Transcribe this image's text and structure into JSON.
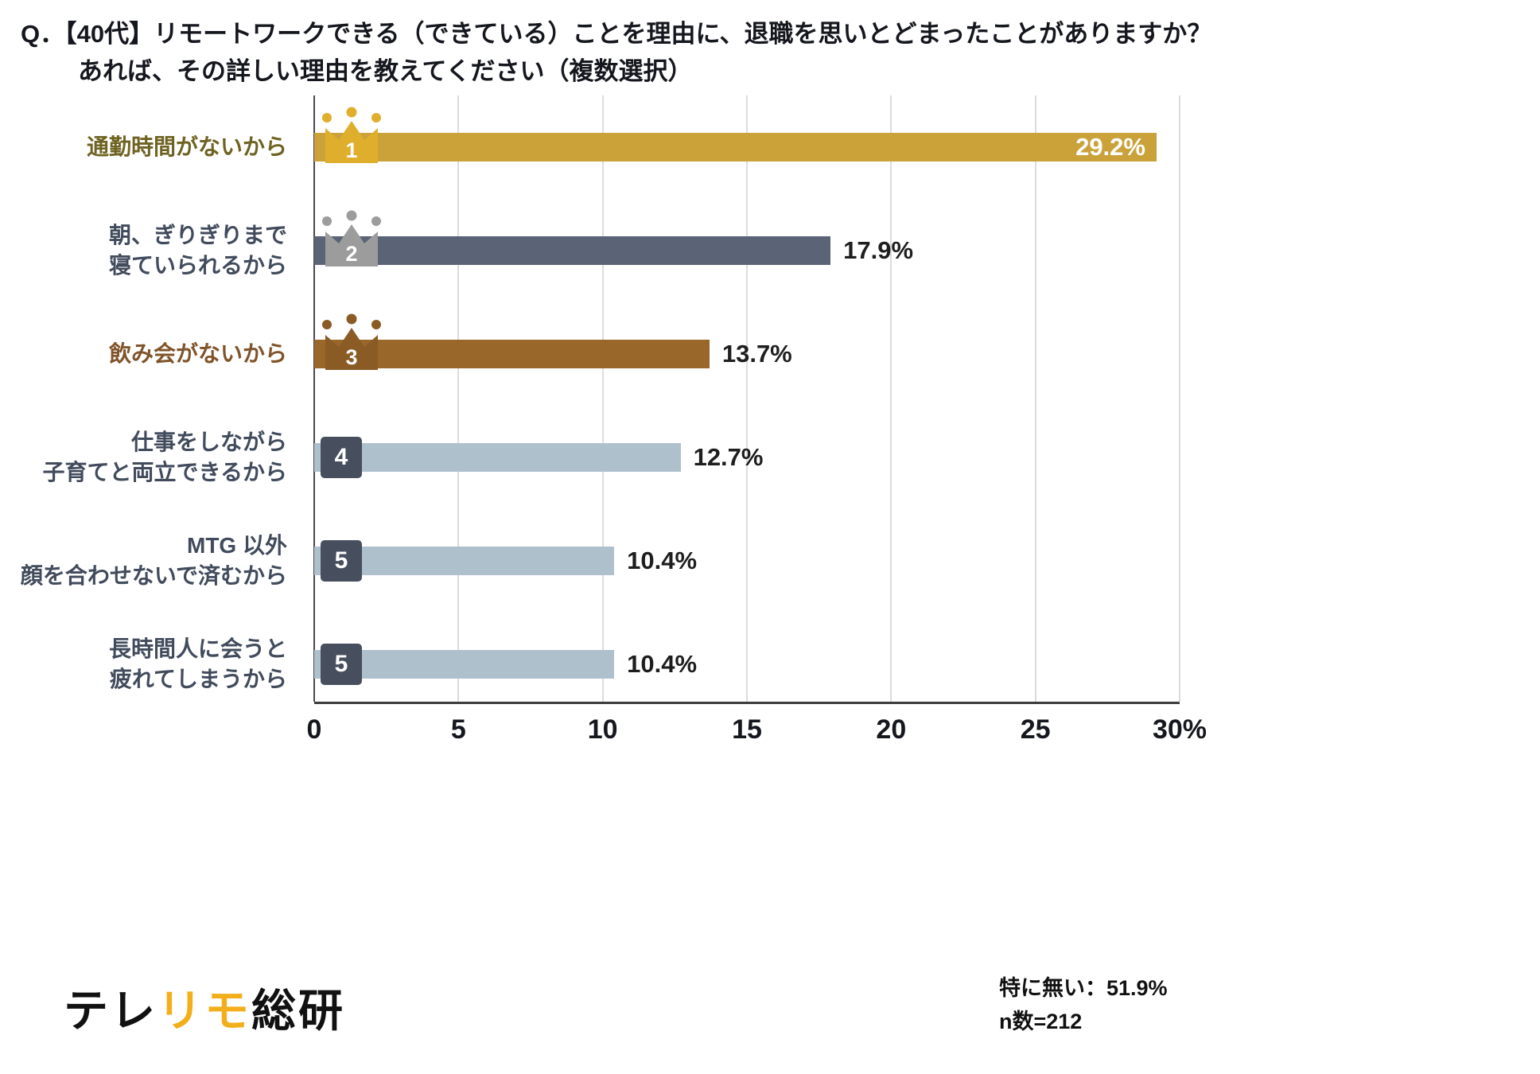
{
  "title": {
    "line1": "Q．【40代】リモートワークできる（できている）ことを理由に、退職を思いとどまったことがありますか？",
    "line2": "あれば、その詳しい理由を教えてください（複数選択）"
  },
  "chart_data": {
    "type": "bar",
    "orientation": "horizontal",
    "title": "Q．【40代】リモートワークできる（できている）ことを理由に、退職を思いとどまったことがありますか？あれば、その詳しい理由を教えてください（複数選択）",
    "xlim": [
      0,
      30
    ],
    "ticks": [
      0,
      5,
      10,
      15,
      20,
      25,
      30
    ],
    "tick_labels": [
      "0",
      "5",
      "10",
      "15",
      "20",
      "25",
      "30%"
    ],
    "grid": true,
    "legend": "none",
    "rows": [
      {
        "rank": "1",
        "badge": "crown",
        "badge_color": "#DFAE2C",
        "label_lines": [
          "通勤時間がないから"
        ],
        "label_color": "#6e6322",
        "bar_color": "#CBA23A",
        "value": 29.2,
        "display": "29.2%",
        "value_inside": true
      },
      {
        "rank": "2",
        "badge": "crown",
        "badge_color": "#9C9C9C",
        "label_lines": [
          "朝、ぎりぎりまで",
          "寝ていられるから"
        ],
        "label_color": "#414b5c",
        "bar_color": "#5A6476",
        "value": 17.9,
        "display": "17.9%",
        "value_inside": false
      },
      {
        "rank": "3",
        "badge": "crown",
        "badge_color": "#8A5B25",
        "label_lines": [
          "飲み会がないから"
        ],
        "label_color": "#80542a",
        "bar_color": "#99672A",
        "value": 13.7,
        "display": "13.7%",
        "value_inside": false
      },
      {
        "rank": "4",
        "badge": "square",
        "badge_color": "#474F5E",
        "label_lines": [
          "仕事をしながら",
          "子育てと両立できるから"
        ],
        "label_color": "#414b5c",
        "bar_color": "#AFC0CD",
        "value": 12.7,
        "display": "12.7%",
        "value_inside": false
      },
      {
        "rank": "5",
        "badge": "square",
        "badge_color": "#474F5E",
        "label_lines": [
          "MTG 以外",
          "顔を合わせないで済むから"
        ],
        "label_color": "#414b5c",
        "bar_color": "#AFC0CD",
        "value": 10.4,
        "display": "10.4%",
        "value_inside": false
      },
      {
        "rank": "5",
        "badge": "square",
        "badge_color": "#474F5E",
        "label_lines": [
          "長時間人に会うと",
          "疲れてしまうから"
        ],
        "label_color": "#414b5c",
        "bar_color": "#AFC0CD",
        "value": 10.4,
        "display": "10.4%",
        "value_inside": false
      }
    ]
  },
  "footer": {
    "logo_part1": "テレ",
    "logo_part2": "リモ",
    "logo_part3": "総研",
    "accent_color": "#F2AF1B",
    "note_line1": "特に無い：51.9%",
    "note_line2": "n数=212"
  }
}
